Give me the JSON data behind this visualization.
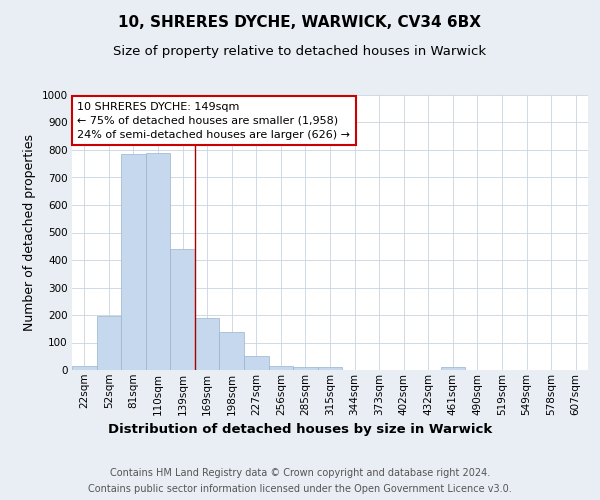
{
  "title1": "10, SHRERES DYCHE, WARWICK, CV34 6BX",
  "title2": "Size of property relative to detached houses in Warwick",
  "xlabel": "Distribution of detached houses by size in Warwick",
  "ylabel": "Number of detached properties",
  "footnote1": "Contains HM Land Registry data © Crown copyright and database right 2024.",
  "footnote2": "Contains public sector information licensed under the Open Government Licence v3.0.",
  "categories": [
    "22sqm",
    "52sqm",
    "81sqm",
    "110sqm",
    "139sqm",
    "169sqm",
    "198sqm",
    "227sqm",
    "256sqm",
    "285sqm",
    "315sqm",
    "344sqm",
    "373sqm",
    "402sqm",
    "432sqm",
    "461sqm",
    "490sqm",
    "519sqm",
    "549sqm",
    "578sqm",
    "607sqm"
  ],
  "values": [
    15,
    195,
    785,
    790,
    440,
    190,
    140,
    50,
    15,
    10,
    10,
    0,
    0,
    0,
    0,
    10,
    0,
    0,
    0,
    0,
    0
  ],
  "bar_color": "#c5d8ed",
  "bar_edge_color": "#9ab4cc",
  "bar_width": 1.0,
  "vline_x_index": 4.5,
  "vline_color": "#aa0000",
  "annotation_line1": "10 SHRERES DYCHE: 149sqm",
  "annotation_line2": "← 75% of detached houses are smaller (1,958)",
  "annotation_line3": "24% of semi-detached houses are larger (626) →",
  "annotation_box_color": "#ffffff",
  "annotation_box_edge": "#cc0000",
  "ylim": [
    0,
    1000
  ],
  "yticks": [
    0,
    100,
    200,
    300,
    400,
    500,
    600,
    700,
    800,
    900,
    1000
  ],
  "bg_color": "#e8eef4",
  "plot_bg_color": "#ffffff",
  "grid_color": "#c8d4e0",
  "title_fontsize": 11,
  "subtitle_fontsize": 9.5,
  "ylabel_fontsize": 9,
  "xlabel_fontsize": 9.5,
  "tick_fontsize": 7.5,
  "annotation_fontsize": 8,
  "footnote_fontsize": 7
}
